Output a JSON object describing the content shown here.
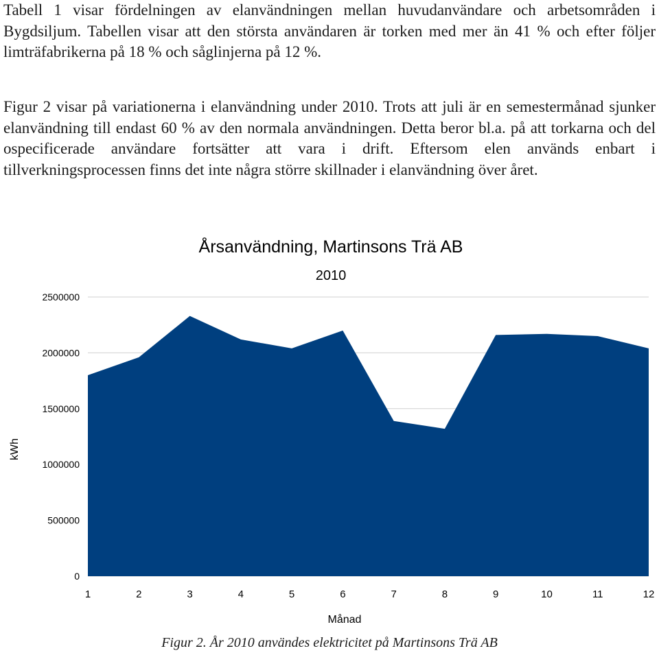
{
  "document": {
    "paragraphs": [
      "Tabell 1 visar fördelningen av elanvändningen mellan huvudanvändare och arbetsområden i Bygdsiljum. Tabellen visar att den största användaren är torken med mer än 41 % och efter följer limträfabrikerna på 18 % och såglinjerna på 12 %.",
      "Figur 2 visar på variationerna i elanvändning under 2010. Trots att juli är en semestermånad sjunker elanvändning till endast 60 % av den normala användningen. Detta beror bl.a. på att torkarna och del ospecificerade användare fortsätter att vara i drift. Eftersom elen används enbart i tillverkningsprocessen finns det inte några större skillnader i elanvändning över året."
    ],
    "caption": "Figur 2. År 2010 användes elektricitet på Martinsons Trä AB"
  },
  "chart_data": {
    "type": "area",
    "title": "Årsanvändning, Martinsons Trä AB",
    "subtitle": "2010",
    "xlabel": "Månad",
    "ylabel": "kWh",
    "x": [
      1,
      2,
      3,
      4,
      5,
      6,
      7,
      8,
      9,
      10,
      11,
      12
    ],
    "y_ticks": [
      0,
      500000,
      1000000,
      1500000,
      2000000,
      2500000
    ],
    "ylim": [
      0,
      2500000
    ],
    "grid": true,
    "legend": "none",
    "series": [
      {
        "values": [
          1800000,
          1960000,
          2330000,
          2120000,
          2040000,
          2200000,
          1390000,
          1320000,
          2160000,
          2170000,
          2150000,
          2040000
        ],
        "color": "#003f7f"
      }
    ]
  }
}
